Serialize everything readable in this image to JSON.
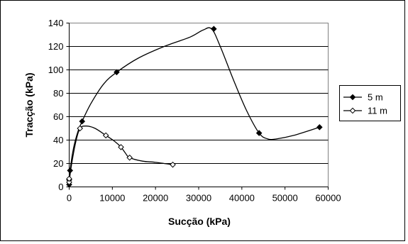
{
  "chart_data": {
    "type": "scatter",
    "xlabel": "Sucção (kPa)",
    "ylabel": "Tracção (kPa)",
    "xlim": [
      0,
      60000
    ],
    "ylim": [
      0,
      140
    ],
    "xticks": [
      0,
      10000,
      20000,
      30000,
      40000,
      50000,
      60000
    ],
    "yticks": [
      0,
      20,
      40,
      60,
      80,
      100,
      120,
      140
    ],
    "grid": "horizontal",
    "legend_position": "right",
    "series": [
      {
        "name": "5 m",
        "marker": "filled-diamond",
        "color": "#000000",
        "x": [
          0,
          0,
          200,
          3000,
          11000,
          33500,
          44000,
          58000
        ],
        "y": [
          2,
          6,
          14,
          56,
          98,
          135,
          46,
          51
        ],
        "curve_x": [
          0,
          200,
          1000,
          2000,
          3000,
          5000,
          8000,
          11000,
          16000,
          22000,
          28000,
          31000,
          33000,
          35000,
          38000,
          41000,
          44000,
          46000,
          48000,
          52000,
          58000
        ],
        "curve_y": [
          2,
          14,
          33,
          47,
          56,
          71,
          88,
          98,
          110,
          120,
          128,
          134,
          135,
          120,
          92,
          66,
          46,
          41,
          41,
          44,
          51
        ]
      },
      {
        "name": "11 m",
        "marker": "open-diamond",
        "color": "#000000",
        "x": [
          0,
          0,
          2500,
          8500,
          12000,
          14000,
          24000
        ],
        "y": [
          4,
          7,
          50,
          44,
          34,
          25,
          19
        ],
        "curve_x": [
          0,
          500,
          1500,
          2500,
          4000,
          6000,
          8500,
          10500,
          12000,
          13000,
          14000,
          17000,
          20000,
          24000
        ],
        "curve_y": [
          4,
          18,
          38,
          50,
          52,
          50,
          44,
          39,
          34,
          29,
          25,
          22,
          21,
          19
        ]
      }
    ]
  }
}
